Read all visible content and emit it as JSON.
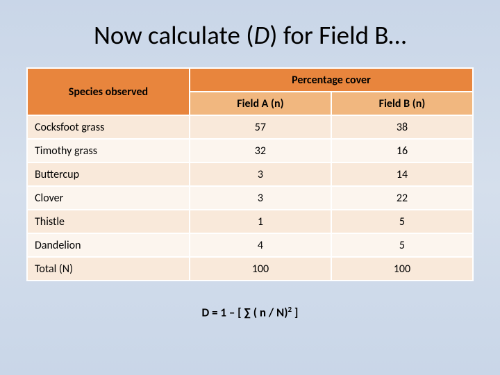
{
  "title_pre": "Now calculate (",
  "title_em": "D",
  "title_post": ") for Field B…",
  "table": {
    "header_species": "Species observed",
    "header_cover": "Percentage cover",
    "sub_a": "Field A (n)",
    "sub_b": "Field B (n)",
    "rows": [
      {
        "species": "Cocksfoot grass",
        "a": "57",
        "b": "38"
      },
      {
        "species": "Timothy grass",
        "a": "32",
        "b": "16"
      },
      {
        "species": "Buttercup",
        "a": "3",
        "b": "14"
      },
      {
        "species": "Clover",
        "a": "3",
        "b": "22"
      },
      {
        "species": "Thistle",
        "a": "1",
        "b": "5"
      },
      {
        "species": "Dandelion",
        "a": "4",
        "b": "5"
      },
      {
        "species": "Total (N)",
        "a": "100",
        "b": "100"
      }
    ],
    "colors": {
      "header_top_bg": "#e8853d",
      "header_sub_bg": "#f1b77f",
      "band_a_bg": "#f9e9da",
      "band_b_bg": "#fcf5ee",
      "border": "#ffffff"
    }
  },
  "formula_pre": "D = 1 – [ ∑ ( n / N)",
  "formula_sup": "2",
  "formula_post": " ]"
}
